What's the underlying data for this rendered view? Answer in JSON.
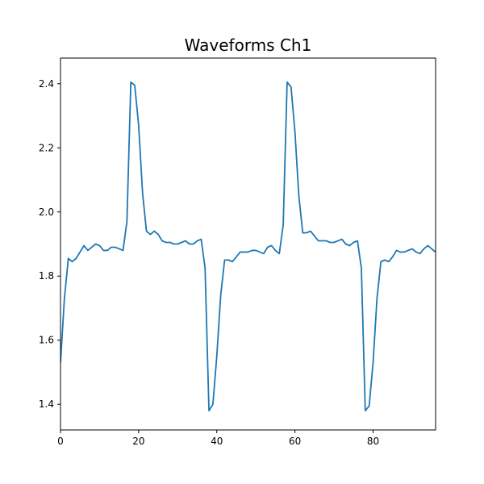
{
  "chart_data": {
    "type": "line",
    "title": "Waveforms Ch1",
    "xlabel": "",
    "ylabel": "",
    "xlim": [
      0,
      96
    ],
    "ylim": [
      1.32,
      2.48
    ],
    "xticks": [
      0,
      20,
      40,
      60,
      80
    ],
    "xtick_labels": [
      "0",
      "20",
      "40",
      "60",
      "80"
    ],
    "yticks": [
      1.4,
      1.6,
      1.8,
      2.0,
      2.2,
      2.4
    ],
    "ytick_labels": [
      "1.4",
      "1.6",
      "1.8",
      "2.0",
      "2.2",
      "2.4"
    ],
    "grid": false,
    "series": [
      {
        "color": "#1f77b4",
        "x": [
          0,
          1,
          2,
          3,
          4,
          5,
          6,
          7,
          8,
          9,
          10,
          11,
          12,
          13,
          14,
          15,
          16,
          17,
          18,
          19,
          20,
          21,
          22,
          23,
          24,
          25,
          26,
          27,
          28,
          29,
          30,
          31,
          32,
          33,
          34,
          35,
          36,
          37,
          38,
          39,
          40,
          41,
          42,
          43,
          44,
          45,
          46,
          47,
          48,
          49,
          50,
          51,
          52,
          53,
          54,
          55,
          56,
          57,
          58,
          59,
          60,
          61,
          62,
          63,
          64,
          65,
          66,
          67,
          68,
          69,
          70,
          71,
          72,
          73,
          74,
          75,
          76,
          77,
          78,
          79,
          80,
          81,
          82,
          83,
          84,
          85,
          86,
          87,
          88,
          89,
          90,
          91,
          92,
          93,
          94,
          95,
          96
        ],
        "values": [
          1.53,
          1.73,
          1.855,
          1.845,
          1.855,
          1.875,
          1.895,
          1.88,
          1.89,
          1.9,
          1.895,
          1.88,
          1.88,
          1.89,
          1.89,
          1.885,
          1.88,
          1.97,
          2.405,
          2.395,
          2.27,
          2.06,
          1.94,
          1.93,
          1.94,
          1.93,
          1.91,
          1.905,
          1.905,
          1.9,
          1.9,
          1.905,
          1.91,
          1.9,
          1.9,
          1.91,
          1.915,
          1.825,
          1.38,
          1.4,
          1.55,
          1.74,
          1.85,
          1.85,
          1.845,
          1.86,
          1.875,
          1.875,
          1.875,
          1.88,
          1.88,
          1.875,
          1.87,
          1.89,
          1.895,
          1.88,
          1.87,
          1.96,
          2.405,
          2.39,
          2.25,
          2.05,
          1.935,
          1.935,
          1.94,
          1.925,
          1.91,
          1.91,
          1.91,
          1.905,
          1.905,
          1.91,
          1.915,
          1.9,
          1.895,
          1.905,
          1.91,
          1.825,
          1.38,
          1.395,
          1.53,
          1.73,
          1.845,
          1.85,
          1.845,
          1.86,
          1.88,
          1.875,
          1.875,
          1.88,
          1.885,
          1.875,
          1.87,
          1.885,
          1.895,
          1.885,
          1.875
        ]
      }
    ]
  }
}
